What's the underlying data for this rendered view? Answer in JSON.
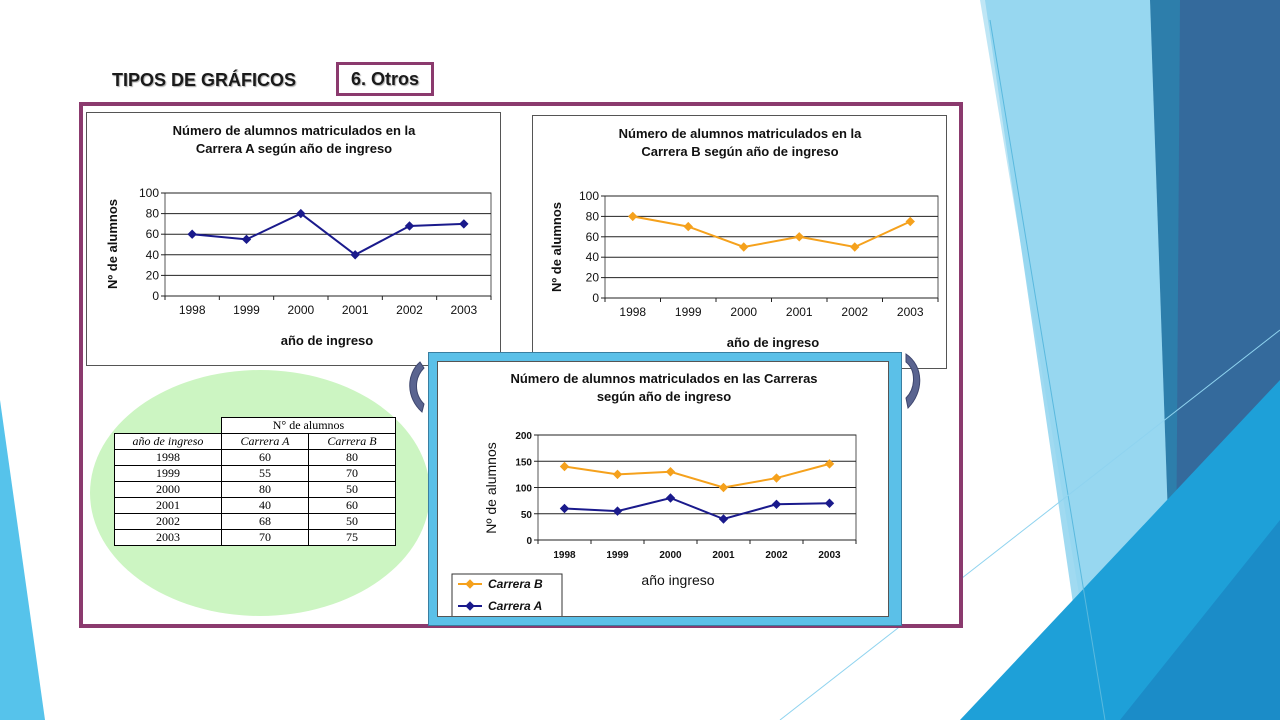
{
  "slide": {
    "heading": "TIPOS DE GRÁFICOS",
    "badge": "6. Otros"
  },
  "table": {
    "group_header": "N° de alumnos",
    "col_headers": [
      "año de ingreso",
      "Carrera A",
      "Carrera B"
    ],
    "rows": [
      [
        "1998",
        "60",
        "80"
      ],
      [
        "1999",
        "55",
        "70"
      ],
      [
        "2000",
        "80",
        "50"
      ],
      [
        "2001",
        "40",
        "60"
      ],
      [
        "2002",
        "68",
        "50"
      ],
      [
        "2003",
        "70",
        "75"
      ]
    ]
  },
  "colors": {
    "carrera_a": "#1a1a8c",
    "carrera_b": "#f5a11c",
    "frame": "#8b3a6e",
    "ellipse": "#ccf5c2",
    "combo_border": "#5bc0e8"
  },
  "chart_data": [
    {
      "type": "line",
      "title": "Número de alumnos matriculados en la Carrera A según año de ingreso",
      "title_lines": [
        "Número de alumnos matriculados en la",
        "Carrera A según año de ingreso"
      ],
      "xlabel": "año de ingreso",
      "ylabel": "Nº de alumnos",
      "categories": [
        "1998",
        "1999",
        "2000",
        "2001",
        "2002",
        "2003"
      ],
      "series": [
        {
          "values": [
            60,
            55,
            80,
            40,
            68,
            70
          ]
        }
      ],
      "ylim": [
        0,
        100
      ],
      "yticks": [
        0,
        20,
        40,
        60,
        80,
        100
      ],
      "grid": true
    },
    {
      "type": "line",
      "title": "Número de alumnos matriculados en la Carrera B según año de ingreso",
      "title_lines": [
        "Número de alumnos matriculados en la",
        "Carrera B según año de ingreso"
      ],
      "xlabel": "año de ingreso",
      "ylabel": "Nº de alumnos",
      "categories": [
        "1998",
        "1999",
        "2000",
        "2001",
        "2002",
        "2003"
      ],
      "series": [
        {
          "values": [
            80,
            70,
            50,
            60,
            50,
            75
          ]
        }
      ],
      "ylim": [
        0,
        100
      ],
      "yticks": [
        0,
        20,
        40,
        60,
        80,
        100
      ],
      "grid": true
    },
    {
      "type": "line",
      "title": "Número de alumnos matriculados en las Carreras según año de ingreso",
      "title_lines": [
        "Número de alumnos matriculados en las Carreras",
        "según año de ingreso"
      ],
      "xlabel": "año ingreso",
      "ylabel": "Nº de alumnos",
      "categories": [
        "1998",
        "1999",
        "2000",
        "2001",
        "2002",
        "2003"
      ],
      "series": [
        {
          "name": "Carrera B",
          "values": [
            140,
            125,
            130,
            100,
            118,
            145
          ]
        },
        {
          "name": "Carrera A",
          "values": [
            60,
            55,
            80,
            40,
            68,
            70
          ]
        }
      ],
      "ylim": [
        0,
        200
      ],
      "yticks": [
        0,
        50,
        100,
        150,
        200
      ],
      "grid": true,
      "legend": "bottom-left"
    }
  ]
}
